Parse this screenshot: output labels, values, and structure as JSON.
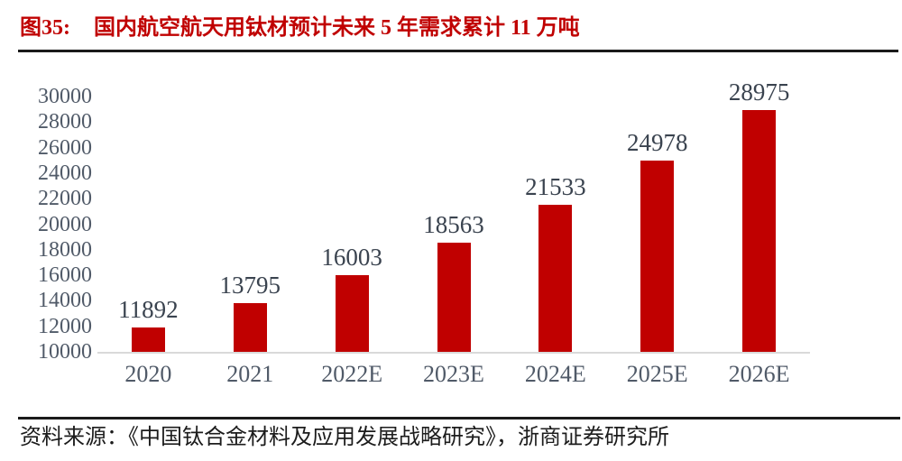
{
  "figure": {
    "label": "图35:",
    "title": "国内航空航天用钛材预计未来 5 年需求累计 11 万吨"
  },
  "chart_data": {
    "type": "bar",
    "title": "国内航空航天用钛材预计未来5年需求累计11万吨",
    "categories": [
      "2020",
      "2021",
      "2022E",
      "2023E",
      "2024E",
      "2025E",
      "2026E"
    ],
    "values": [
      11892,
      13795,
      16003,
      18563,
      21533,
      24978,
      28975
    ],
    "xlabel": "",
    "ylabel": "",
    "ylim": [
      10000,
      30000
    ],
    "yticks": [
      10000,
      12000,
      14000,
      16000,
      18000,
      20000,
      22000,
      24000,
      26000,
      28000,
      30000
    ],
    "grid": false,
    "legend": false,
    "data_labels": true,
    "bar_color": "#C00000",
    "axis_text_color": "#505a68",
    "value_label_color": "#3a434f",
    "baseline_color": "#d9d9d9"
  },
  "source": {
    "text": "资料来源：《中国钛合金材料及应用发展战略研究》，浙商证券研究所"
  },
  "colors": {
    "accent_red": "#C00000",
    "rule_dark": "#1a1a1a"
  }
}
